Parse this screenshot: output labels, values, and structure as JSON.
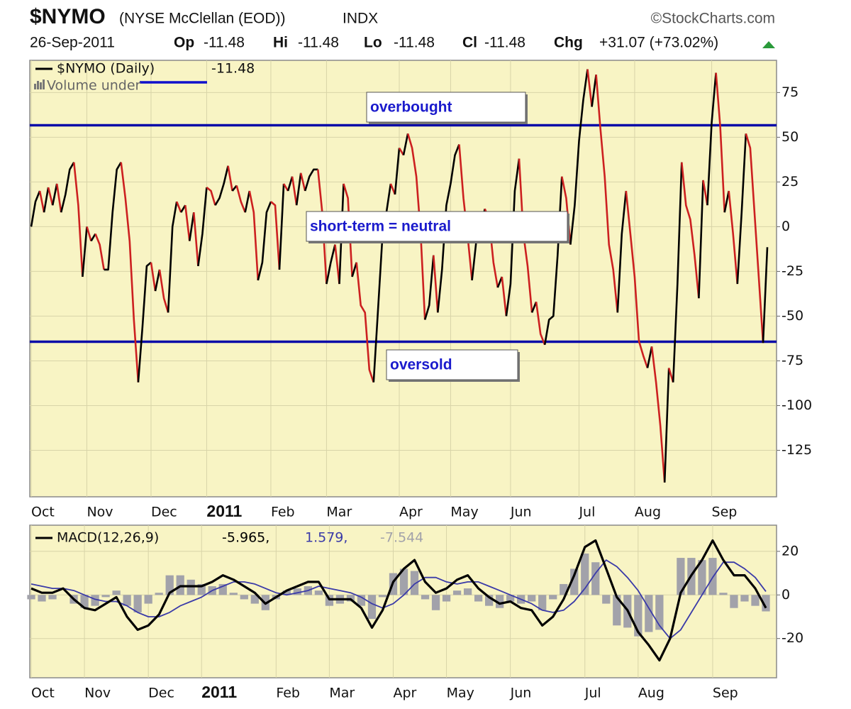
{
  "header": {
    "symbol": "$NYMO",
    "name": "(NYSE McClellan (EOD))",
    "exchange": "INDX",
    "source": "©StockCharts.com",
    "date": "26-Sep-2011",
    "fields": [
      {
        "label": "Op",
        "value": "-11.48"
      },
      {
        "label": "Hi",
        "value": "-11.48"
      },
      {
        "label": "Lo",
        "value": "-11.48"
      },
      {
        "label": "Cl",
        "value": "-11.48"
      },
      {
        "label": "Chg",
        "value": "+31.07 (+73.02%)"
      }
    ]
  },
  "chart_data": [
    {
      "type": "line",
      "legend": {
        "name": "$NYMO (Daily)",
        "value": "-11.48"
      },
      "volume_note": "Volume under",
      "up_color": "#000000",
      "down_color": "#cc2020",
      "background": "#f8f4c4",
      "grid": true,
      "ylim": [
        -151,
        93
      ],
      "yticks": [
        75,
        50,
        25,
        0,
        -25,
        -50,
        -75,
        -100,
        -125
      ],
      "xticks": [
        {
          "value": 0,
          "label": "Oct"
        },
        {
          "value": 13,
          "label": "Nov"
        },
        {
          "value": 28,
          "label": "Dec"
        },
        {
          "value": 41,
          "label": "2011"
        },
        {
          "value": 56,
          "label": "Feb"
        },
        {
          "value": 69,
          "label": "Mar"
        },
        {
          "value": 86,
          "label": "Apr"
        },
        {
          "value": 98,
          "label": "May"
        },
        {
          "value": 112,
          "label": "Jun"
        },
        {
          "value": 128,
          "label": "Jul"
        },
        {
          "value": 141,
          "label": "Aug"
        },
        {
          "value": 159,
          "label": "Sep"
        }
      ],
      "values": [
        0,
        14,
        20,
        8,
        22,
        12,
        24,
        8,
        18,
        32,
        36,
        12,
        -28,
        0,
        -8,
        -4,
        -10,
        -24,
        -24,
        8,
        32,
        36,
        16,
        -8,
        -52,
        -87,
        -56,
        -22,
        -20,
        -36,
        -24,
        -40,
        -48,
        0,
        14,
        8,
        12,
        -8,
        8,
        -22,
        -4,
        22,
        20,
        12,
        16,
        24,
        34,
        20,
        23,
        14,
        8,
        20,
        8,
        -30,
        -20,
        8,
        14,
        12,
        -24,
        24,
        20,
        28,
        12,
        30,
        20,
        28,
        32,
        32,
        8,
        -32,
        -20,
        -10,
        -32,
        24,
        16,
        -28,
        -20,
        -44,
        -48,
        -80,
        -87,
        -48,
        -8,
        8,
        24,
        18,
        44,
        40,
        52,
        44,
        28,
        -4,
        -52,
        -44,
        -16,
        -48,
        -24,
        12,
        24,
        40,
        46,
        16,
        -6,
        -30,
        -8,
        -2,
        10,
        4,
        -20,
        -34,
        -28,
        -50,
        -32,
        20,
        38,
        -4,
        -22,
        -48,
        -42,
        -60,
        -66,
        -52,
        -50,
        -16,
        28,
        16,
        -10,
        12,
        48,
        71,
        88,
        67,
        85,
        55,
        28,
        -10,
        -24,
        -48,
        -4,
        20,
        -4,
        -28,
        -64,
        -72,
        -79,
        -67,
        -87,
        -111,
        -143,
        -79,
        -87,
        -32,
        36,
        12,
        4,
        -16,
        -40,
        26,
        12,
        58,
        86,
        56,
        8,
        20,
        -4,
        -32,
        8,
        52,
        44,
        8,
        -28,
        -65,
        -11.48
      ],
      "reference_lines": [
        {
          "value": 56.7,
          "color": "#0a0aa8"
        },
        {
          "value": -64.3,
          "color": "#0a0aa8"
        }
      ],
      "annotations": [
        "overbought",
        "short-term = neutral",
        "oversold"
      ]
    },
    {
      "type": "macd",
      "legend": {
        "name": "MACD(12,26,9)",
        "values_text": [
          "-5.965,",
          "1.579,",
          "-7.544"
        ]
      },
      "background": "#f8f4c4",
      "grid": true,
      "ylim": [
        -38,
        32
      ],
      "yticks": [
        20,
        0,
        -20
      ],
      "xticks": [
        {
          "value": 0,
          "label": "Oct"
        },
        {
          "value": 5,
          "label": "Nov"
        },
        {
          "value": 11,
          "label": "Dec"
        },
        {
          "value": 16,
          "label": "2011"
        },
        {
          "value": 23,
          "label": "Feb"
        },
        {
          "value": 28,
          "label": "Mar"
        },
        {
          "value": 34,
          "label": "Apr"
        },
        {
          "value": 39,
          "label": "May"
        },
        {
          "value": 45,
          "label": "Jun"
        },
        {
          "value": 52,
          "label": "Jul"
        },
        {
          "value": 57,
          "label": "Aug"
        },
        {
          "value": 64,
          "label": "Sep"
        }
      ],
      "series": [
        {
          "color": "#000000",
          "values": [
            3,
            1,
            1,
            3,
            -2,
            -6,
            -7,
            -4,
            -1,
            -10,
            -16,
            -14,
            -9,
            1,
            4,
            4,
            4,
            6,
            9,
            7,
            4,
            1,
            -4,
            -1,
            2,
            4,
            6,
            6,
            -2,
            -2,
            -2,
            -6,
            -15,
            -7,
            6,
            12,
            16,
            6,
            1,
            3,
            7,
            9,
            3,
            -1,
            -4,
            -3,
            -6,
            -7,
            -14,
            -10,
            -2,
            9,
            22,
            25,
            12,
            -1,
            -7,
            -17,
            -23,
            -30,
            -20,
            1,
            9,
            16,
            25,
            16,
            9,
            9,
            3,
            -5.965
          ]
        },
        {
          "color": "#3a3aa8",
          "values": [
            5,
            4,
            3,
            3,
            2,
            0,
            -2,
            -3,
            -3,
            -5,
            -8,
            -10,
            -10,
            -8,
            -5,
            -3,
            -1,
            2,
            4,
            6,
            6,
            5,
            3,
            1,
            0,
            1,
            2,
            4,
            3,
            2,
            1,
            -1,
            -4,
            -6,
            -4,
            0,
            5,
            8,
            8,
            6,
            5,
            6,
            6,
            4,
            2,
            0,
            -2,
            -4,
            -7,
            -8,
            -7,
            -3,
            3,
            10,
            16,
            13,
            8,
            2,
            -6,
            -14,
            -20,
            -16,
            -8,
            0,
            8,
            15,
            15,
            12,
            8,
            1.579
          ]
        },
        {
          "color": "#a2a2aa",
          "values": [
            -2,
            -3,
            -2,
            0,
            -4,
            -6,
            -5,
            -1,
            2,
            -5,
            -8,
            -4,
            1,
            9,
            9,
            7,
            5,
            4,
            5,
            1,
            -2,
            -4,
            -7,
            -2,
            2,
            3,
            4,
            2,
            -5,
            -4,
            -3,
            -5,
            -11,
            -1,
            10,
            12,
            11,
            -2,
            -7,
            -3,
            2,
            3,
            -3,
            -5,
            -6,
            -3,
            -4,
            -3,
            -7,
            -2,
            5,
            12,
            19,
            15,
            -4,
            -14,
            -15,
            -19,
            -17,
            -16,
            0,
            17,
            17,
            16,
            17,
            1,
            -6,
            -3,
            -5,
            -7.544
          ]
        }
      ]
    }
  ]
}
